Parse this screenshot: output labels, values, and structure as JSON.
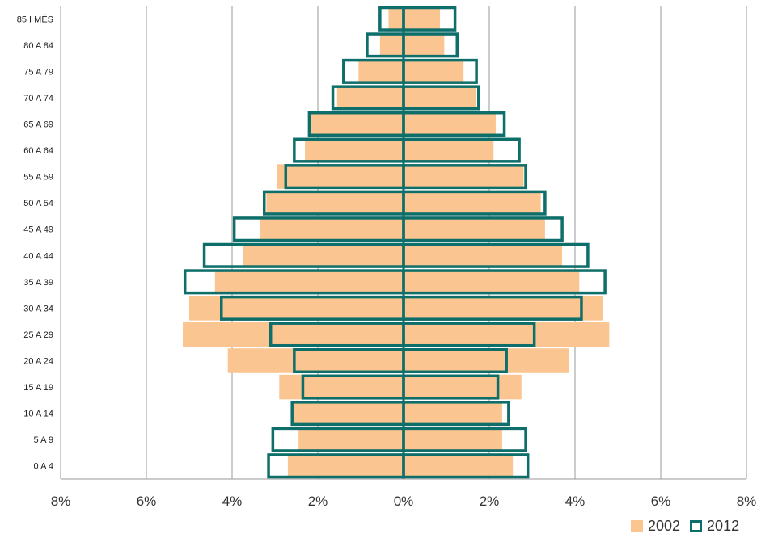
{
  "chart_data": {
    "type": "bar",
    "orientation": "horizontal-population-pyramid",
    "categories": [
      "0 A 4",
      "5 A 9",
      "10 A 14",
      "15 A 19",
      "20 A 24",
      "25 A 29",
      "30 A 34",
      "35 A 39",
      "40 A 44",
      "45 A 49",
      "50 A 54",
      "55 A 59",
      "60 A 64",
      "65 A 69",
      "70 A 74",
      "75 A 79",
      "80 A 84",
      "85 I MÉS"
    ],
    "series": [
      {
        "name": "2002",
        "style": "filled",
        "color": "#FAC590",
        "left": [
          2.7,
          2.45,
          2.55,
          2.9,
          4.1,
          5.15,
          5.0,
          4.4,
          3.75,
          3.35,
          3.2,
          2.95,
          2.3,
          2.15,
          1.55,
          1.05,
          0.55,
          0.35
        ],
        "right": [
          2.55,
          2.3,
          2.3,
          2.75,
          3.85,
          4.8,
          4.65,
          4.1,
          3.7,
          3.3,
          3.2,
          2.8,
          2.1,
          2.15,
          1.7,
          1.4,
          0.95,
          0.85
        ]
      },
      {
        "name": "2012",
        "style": "outline",
        "color": "#0E6E6A",
        "left": [
          3.15,
          3.05,
          2.6,
          2.35,
          2.55,
          3.1,
          4.25,
          5.1,
          4.65,
          3.95,
          3.25,
          2.75,
          2.55,
          2.2,
          1.65,
          1.4,
          0.85,
          0.55
        ],
        "right": [
          2.9,
          2.85,
          2.45,
          2.2,
          2.4,
          3.05,
          4.15,
          4.7,
          4.3,
          3.7,
          3.3,
          2.85,
          2.7,
          2.35,
          1.75,
          1.7,
          1.25,
          1.2
        ]
      }
    ],
    "x_tick_labels": [
      "8%",
      "6%",
      "4%",
      "2%",
      "0%",
      "2%",
      "4%",
      "6%",
      "8%"
    ],
    "xlim": [
      -8,
      8
    ],
    "grid": "vertical",
    "legend_position": "bottom-right"
  },
  "colors": {
    "fill_2002": "#FAC590",
    "outline_2012": "#0E6E6A",
    "grid": "#9A9A9A",
    "axis": "#0E6E6A"
  }
}
